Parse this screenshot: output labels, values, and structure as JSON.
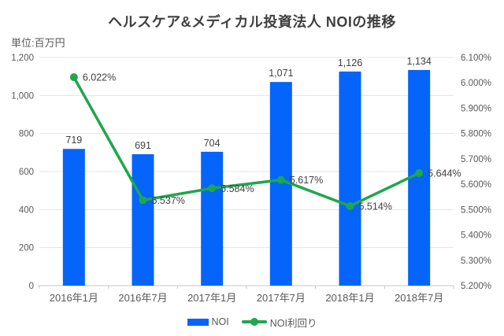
{
  "chart_data": {
    "type": "combo-bar-line",
    "title": "ヘルスケア&メディカル投資法人 NOIの推移",
    "unit": "単位:百万円",
    "categories": [
      "2016年1月",
      "2016年7月",
      "2017年1月",
      "2017年7月",
      "2018年1月",
      "2018年7月"
    ],
    "series": [
      {
        "name": "NOI",
        "type": "bar",
        "axis": "left",
        "color": "#0564fa",
        "values": [
          719,
          691,
          704,
          1071,
          1126,
          1134
        ],
        "labels": [
          "719",
          "691",
          "704",
          "1,071",
          "1,126",
          "1,134"
        ]
      },
      {
        "name": "NOI利回り",
        "type": "line",
        "axis": "right",
        "color": "#1ea74d",
        "values": [
          6.022,
          5.537,
          5.584,
          5.617,
          5.514,
          5.644
        ],
        "labels": [
          "6.022%",
          "5.537%",
          "5.584%",
          "5.617%",
          "5.514%",
          "5.644%"
        ]
      }
    ],
    "left_axis": {
      "min": 0,
      "max": 1200,
      "step": 200,
      "ticks": [
        "0",
        "200",
        "400",
        "600",
        "800",
        "1,000",
        "1,200"
      ]
    },
    "right_axis": {
      "min": 5.2,
      "max": 6.1,
      "step": 0.1,
      "ticks": [
        "5.200%",
        "5.300%",
        "5.400%",
        "5.500%",
        "5.600%",
        "5.700%",
        "5.800%",
        "5.900%",
        "6.000%",
        "6.100%"
      ]
    },
    "grid": true,
    "legend_position": "bottom",
    "colors": {
      "grid": "#e4e4e4",
      "axis": "#c6c6c6",
      "tick_text": "#595959",
      "data_label": "#404040",
      "title_text": "#404040"
    }
  }
}
